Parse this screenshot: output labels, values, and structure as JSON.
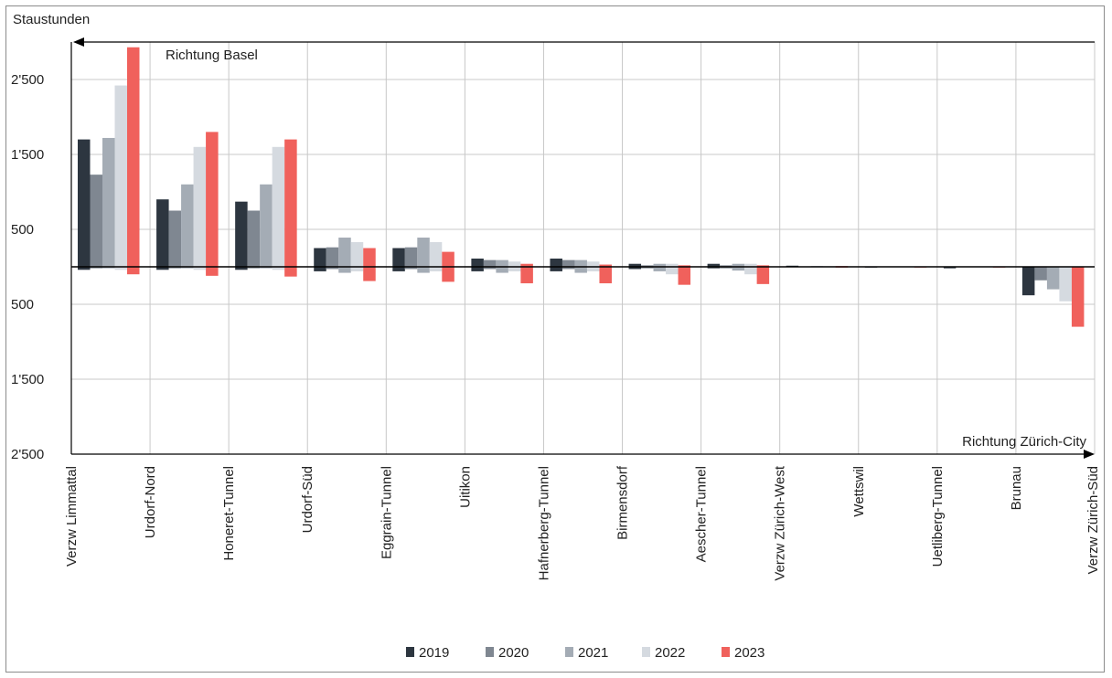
{
  "chart_data": {
    "type": "bar",
    "ylabel": "Staustunden",
    "annotations": {
      "upper_arrow": "Richtung Basel",
      "lower_arrow": "Richtung Zürich-City"
    },
    "y_tick_labels": [
      "2'500",
      "1'500",
      "500",
      "500",
      "1'500",
      "2'500"
    ],
    "ylim": [
      -2500,
      2500
    ],
    "x_labels": [
      "Verzw Limmattal",
      "Urdorf-Nord",
      "Honeret-Tunnel",
      "Urdorf-Süd",
      "Eggrain-Tunnel",
      "Uitikon",
      "Hafnerberg-Tunnel",
      "Birmensdorf",
      "Aescher-Tunnel",
      "Verzw Zürich-West",
      "Wettswil",
      "Uetliberg-Tunnel",
      "Brunau",
      "Verzw Zürich-Süd"
    ],
    "segments": [
      "Verzw Limmattal – Urdorf-Nord",
      "Urdorf-Nord – Honeret-Tunnel",
      "Honeret-Tunnel – Urdorf-Süd",
      "Urdorf-Süd – Eggrain-Tunnel",
      "Eggrain-Tunnel – Uitikon",
      "Uitikon – Hafnerberg-Tunnel",
      "Hafnerberg-Tunnel – Birmensdorf",
      "Birmensdorf – Aescher-Tunnel",
      "Aescher-Tunnel – Verzw Zürich-West",
      "Verzw Zürich-West – Wettswil",
      "Wettswil – Uetliberg-Tunnel",
      "Uetliberg-Tunnel – Brunau",
      "Brunau – Verzw Zürich-Süd"
    ],
    "series": [
      {
        "name": "2019",
        "color": "#2d3640",
        "basel": [
          1700,
          900,
          870,
          250,
          250,
          110,
          110,
          40,
          40,
          15,
          5,
          5,
          5
        ],
        "zuerich": [
          40,
          40,
          40,
          60,
          60,
          60,
          60,
          30,
          20,
          5,
          10,
          20,
          380
        ]
      },
      {
        "name": "2020",
        "color": "#7f8791",
        "basel": [
          1230,
          750,
          750,
          260,
          260,
          90,
          90,
          20,
          20,
          5,
          5,
          5,
          5
        ],
        "zuerich": [
          20,
          20,
          20,
          30,
          30,
          30,
          30,
          20,
          20,
          5,
          5,
          5,
          180
        ]
      },
      {
        "name": "2021",
        "color": "#a4acb5",
        "basel": [
          1720,
          1100,
          1100,
          390,
          390,
          90,
          90,
          40,
          40,
          10,
          5,
          5,
          5
        ],
        "zuerich": [
          20,
          20,
          20,
          80,
          80,
          80,
          80,
          60,
          50,
          5,
          5,
          5,
          300
        ]
      },
      {
        "name": "2022",
        "color": "#d5dae0",
        "basel": [
          2420,
          1600,
          1600,
          330,
          330,
          70,
          70,
          40,
          40,
          10,
          5,
          5,
          5
        ],
        "zuerich": [
          40,
          40,
          40,
          60,
          60,
          60,
          60,
          100,
          100,
          5,
          5,
          5,
          460
        ]
      },
      {
        "name": "2023",
        "color": "#f0615c",
        "basel": [
          2930,
          1800,
          1700,
          250,
          200,
          40,
          30,
          20,
          20,
          10,
          5,
          5,
          5
        ],
        "zuerich": [
          100,
          120,
          130,
          190,
          200,
          220,
          220,
          240,
          230,
          10,
          10,
          10,
          800
        ]
      }
    ],
    "legend_position": "bottom",
    "grid": true
  }
}
